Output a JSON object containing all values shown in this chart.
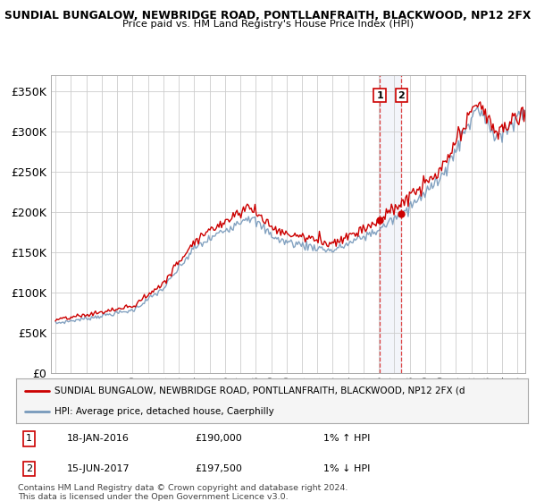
{
  "title1": "SUNDIAL BUNGALOW, NEWBRIDGE ROAD, PONTLLANFRAITH, BLACKWOOD, NP12 2FX",
  "title2": "Price paid vs. HM Land Registry's House Price Index (HPI)",
  "ylabel_ticks": [
    "£0",
    "£50K",
    "£100K",
    "£150K",
    "£200K",
    "£250K",
    "£300K",
    "£350K"
  ],
  "ytick_values": [
    0,
    50000,
    100000,
    150000,
    200000,
    250000,
    300000,
    350000
  ],
  "ylim": [
    0,
    370000
  ],
  "line1_color": "#cc0000",
  "line2_color": "#7799bb",
  "vline_color": "#dd4444",
  "span_color": "#d0d8ee",
  "point1_date": 2016.05,
  "point1_price": 190000,
  "point2_date": 2017.46,
  "point2_price": 197500,
  "legend_line1": "SUNDIAL BUNGALOW, NEWBRIDGE ROAD, PONTLLANFRAITH, BLACKWOOD, NP12 2FX (d",
  "legend_line2": "HPI: Average price, detached house, Caerphilly",
  "table_row1": [
    "1",
    "18-JAN-2016",
    "£190,000",
    "1% ↑ HPI"
  ],
  "table_row2": [
    "2",
    "15-JUN-2017",
    "£197,500",
    "1% ↓ HPI"
  ],
  "footer": "Contains HM Land Registry data © Crown copyright and database right 2024.\nThis data is licensed under the Open Government Licence v3.0.",
  "background_color": "#ffffff",
  "grid_color": "#cccccc",
  "xtick_start": 1995,
  "xtick_end": 2025,
  "fig_width": 6.0,
  "fig_height": 5.6,
  "dpi": 100
}
